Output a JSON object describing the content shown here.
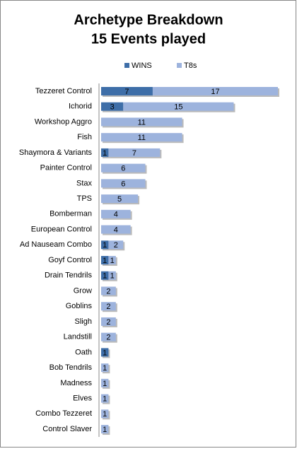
{
  "chart_data": {
    "type": "stacked-bar",
    "title": "Archetype Breakdown",
    "subtitle": "15 Events played",
    "categories": [
      "Tezzeret Control",
      "Ichorid",
      "Workshop Aggro",
      "Fish",
      "Shaymora & Variants",
      "Painter Control",
      "Stax",
      "TPS",
      "Bomberman",
      "European Control",
      "Ad Nauseam  Combo",
      "Goyf Control",
      "Drain Tendrils",
      "Grow",
      "Goblins",
      "Sligh",
      "Landstill",
      "Oath",
      "Bob Tendrils",
      "Madness",
      "Elves",
      "Combo Tezzeret",
      "Control Slaver"
    ],
    "series": [
      {
        "name": "WINS",
        "color": "#3e6ea8",
        "values": [
          7,
          3,
          0,
          0,
          1,
          0,
          0,
          0,
          0,
          0,
          1,
          1,
          1,
          0,
          0,
          0,
          0,
          1,
          0,
          0,
          0,
          0,
          0
        ]
      },
      {
        "name": "T8s",
        "color": "#9db3dd",
        "values": [
          17,
          15,
          11,
          11,
          7,
          6,
          6,
          5,
          4,
          4,
          2,
          1,
          1,
          2,
          2,
          2,
          2,
          0,
          1,
          1,
          1,
          1,
          1
        ]
      }
    ],
    "legend": "top"
  }
}
